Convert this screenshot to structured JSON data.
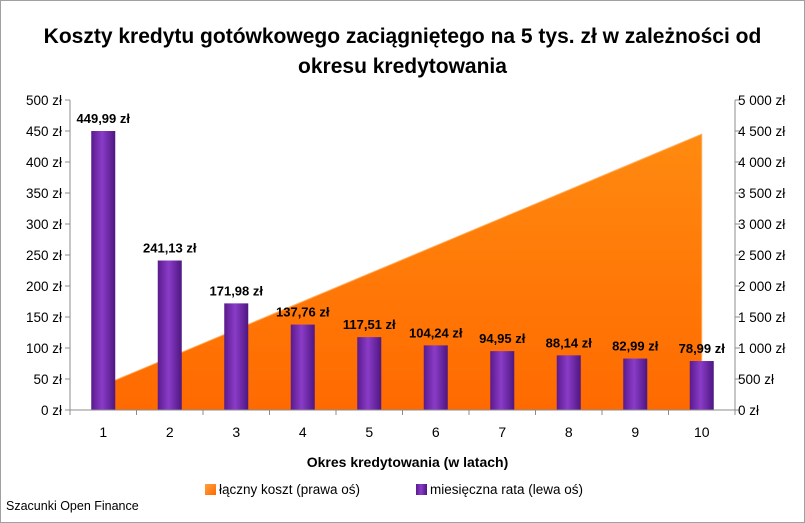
{
  "chart_data": {
    "type": "bar+area",
    "title_lines": [
      "Koszty kredytu gotówkowego zaciągniętego na 5 tys. zł w zależności od",
      "okresu kredytowania"
    ],
    "xlabel": "Okres kredytowania  (w latach)",
    "categories": [
      "1",
      "2",
      "3",
      "4",
      "5",
      "6",
      "7",
      "8",
      "9",
      "10"
    ],
    "left_axis": {
      "ylim": [
        0,
        500
      ],
      "ticks": [
        0,
        50,
        100,
        150,
        200,
        250,
        300,
        350,
        400,
        450,
        500
      ],
      "tick_labels": [
        "0 zł",
        "50 zł",
        "100 zł",
        "150 zł",
        "200 zł",
        "250 zł",
        "300 zł",
        "350 zł",
        "400 zł",
        "450 zł",
        "500 zł"
      ]
    },
    "right_axis": {
      "ylim": [
        0,
        5000
      ],
      "ticks": [
        0,
        500,
        1000,
        1500,
        2000,
        2500,
        3000,
        3500,
        4000,
        4500,
        5000
      ],
      "tick_labels": [
        "0 zł",
        "500 zł",
        "1 000 zł",
        "1 500 zł",
        "2 000 zł",
        "2 500 zł",
        "3 000 zł",
        "3 500 zł",
        "4 000 zł",
        "4 500 zł",
        "5 000 zł"
      ]
    },
    "series": [
      {
        "name": "łączny koszt (prawa oś)",
        "type": "area",
        "axis": "right",
        "color": "#ff7f00",
        "values": [
          400,
          850,
          1300,
          1750,
          2200,
          2650,
          3100,
          3550,
          4000,
          4450
        ]
      },
      {
        "name": "miesięczna rata (lewa oś)",
        "type": "bar",
        "axis": "left",
        "color": "#7030a0",
        "values": [
          449.99,
          241.13,
          171.98,
          137.76,
          117.51,
          104.24,
          94.95,
          88.14,
          82.99,
          78.99
        ],
        "data_labels": [
          "449,99 zł",
          "241,13 zł",
          "171,98 zł",
          "137,76 zł",
          "117,51 zł",
          "104,24 zł",
          "94,95 zł",
          "88,14 zł",
          "82,99 zł",
          "78,99 zł"
        ]
      }
    ],
    "legend_position": "bottom",
    "grid": false
  },
  "source_note": "Szacunki Open Finance"
}
